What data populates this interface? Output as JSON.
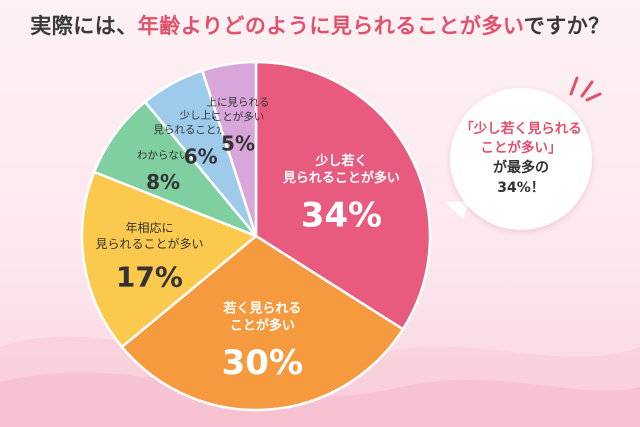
{
  "title": {
    "prefix": "実際には、",
    "highlight": "年齢よりどのように見られることが多い",
    "suffix": "ですか？"
  },
  "colors": {
    "accent": "#e2506b",
    "slice_0": "#e85b7e",
    "slice_1": "#f59a3f",
    "slice_2": "#fbc94e",
    "slice_3": "#7fcfa0",
    "slice_4": "#9ecbec",
    "slice_5": "#d9a6da"
  },
  "chart_data": {
    "type": "pie",
    "start": "12 o'clock, clockwise",
    "slices": [
      {
        "label_lines": [
          "少し若く",
          "見られることが多い"
        ],
        "value": 34,
        "value_text": "34%"
      },
      {
        "label_lines": [
          "若く見られる",
          "ことが多い"
        ],
        "value": 30,
        "value_text": "30%"
      },
      {
        "label_lines": [
          "年相応に",
          "見られることが多い"
        ],
        "value": 17,
        "value_text": "17%"
      },
      {
        "label_lines": [
          "わからない"
        ],
        "value": 8,
        "value_text": "8%"
      },
      {
        "label_lines": [
          "少し上に",
          "見られることが多い"
        ],
        "value": 6,
        "value_text": "6%"
      },
      {
        "label_lines": [
          "上に見られる",
          "ことが多い"
        ],
        "value": 5,
        "value_text": "5%"
      }
    ]
  },
  "callout": {
    "line1": "「少し若く見られる",
    "line2": "ことが多い」",
    "line3": "が最多の",
    "line4": "34%！"
  }
}
